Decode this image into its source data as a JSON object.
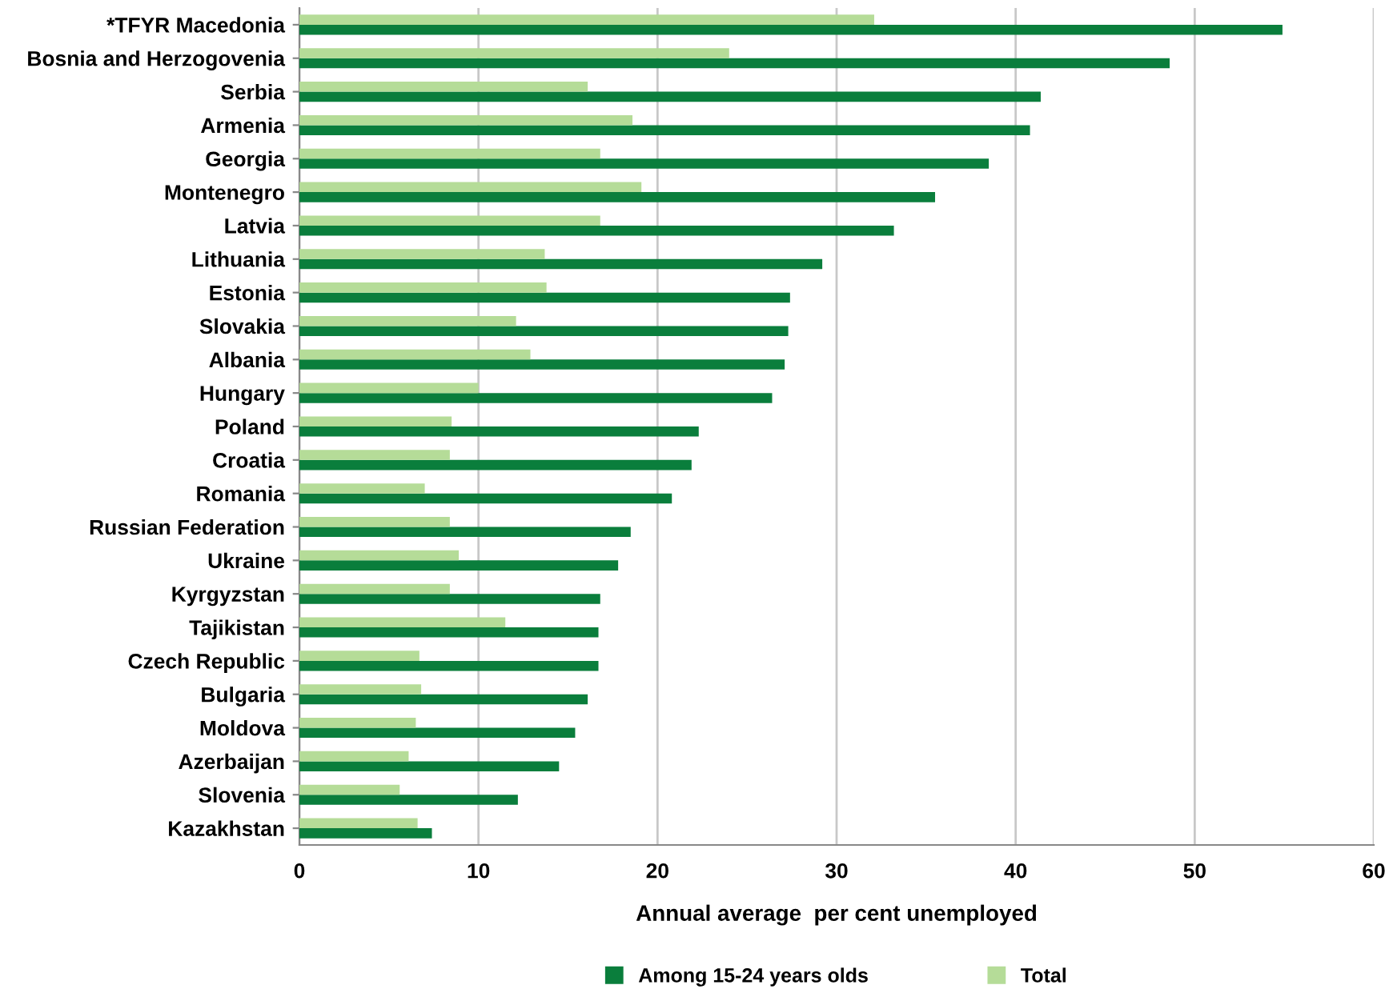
{
  "chart_data": {
    "type": "bar",
    "orientation": "horizontal",
    "xlabel": "Annual average  per cent unemployed",
    "categories": [
      "*TFYR Macedonia",
      "Bosnia and Herzogovenia",
      "Serbia",
      "Armenia",
      "Georgia",
      "Montenegro",
      "Latvia",
      "Lithuania",
      "Estonia",
      "Slovakia",
      "Albania",
      "Hungary",
      "Poland",
      "Croatia",
      "Romania",
      "Russian Federation",
      "Ukraine",
      "Kyrgyzstan",
      "Tajikistan",
      "Czech Republic",
      "Bulgaria",
      "Moldova",
      "Azerbaijan",
      "Slovenia",
      "Kazakhstan"
    ],
    "series": [
      {
        "name": "Among 15-24 years olds",
        "color": "#0a7e3c",
        "values": [
          54.9,
          48.6,
          41.4,
          40.8,
          38.5,
          35.5,
          33.2,
          29.2,
          27.4,
          27.3,
          27.1,
          26.4,
          22.3,
          21.9,
          20.8,
          18.5,
          17.8,
          16.8,
          16.7,
          16.7,
          16.1,
          15.4,
          14.5,
          12.2,
          7.4
        ]
      },
      {
        "name": "Total",
        "color": "#b5dc98",
        "values": [
          32.1,
          24.0,
          16.1,
          18.6,
          16.8,
          19.1,
          16.8,
          13.7,
          13.8,
          12.1,
          12.9,
          10.0,
          8.5,
          8.4,
          7.0,
          8.4,
          8.9,
          8.4,
          11.5,
          6.7,
          6.8,
          6.5,
          6.1,
          5.6,
          6.6
        ]
      }
    ],
    "xlim": [
      0,
      60
    ],
    "xticks": [
      0,
      10,
      20,
      30,
      40,
      50,
      60
    ],
    "grid": "x",
    "legend": "bottom"
  }
}
